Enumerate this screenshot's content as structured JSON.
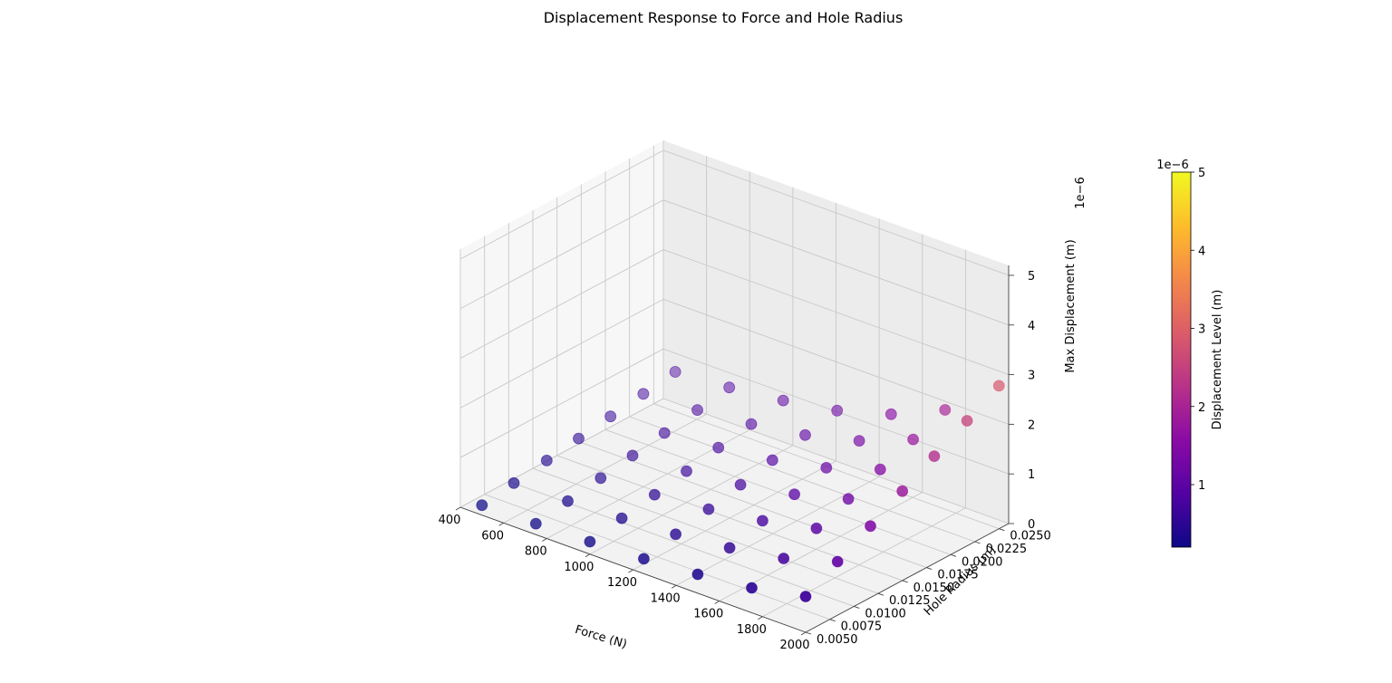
{
  "chart_data": {
    "type": "scatter",
    "projection": "3d",
    "title": "Displacement Response to Force and Hole Radius",
    "xlabel": "Force (N)",
    "ylabel": "Hole Radius (m)",
    "zlabel": "Max Displacement (m)",
    "z_offset_label": "1e−6",
    "xlim": [
      400,
      2000
    ],
    "ylim": [
      0.005,
      0.026
    ],
    "zlim": [
      0,
      5.2
    ],
    "x_ticks": [
      "400",
      "600",
      "800",
      "1000",
      "1200",
      "1400",
      "1600",
      "1800",
      "2000"
    ],
    "y_ticks": [
      "0.0050",
      "0.0075",
      "0.0100",
      "0.0125",
      "0.0150",
      "0.0175",
      "0.0200",
      "0.0225",
      "0.0250"
    ],
    "z_ticks": [
      "0",
      "1",
      "2",
      "3",
      "4",
      "5"
    ],
    "x": [
      500,
      750,
      1000,
      1250,
      1500,
      1750,
      2000
    ],
    "y": [
      0.005,
      0.0083,
      0.0117,
      0.015,
      0.0183,
      0.0217,
      0.025
    ],
    "z_units": "×1e-6 m",
    "z": [
      [
        0.2,
        0.22,
        0.25,
        0.3,
        0.38,
        0.5,
        0.72
      ],
      [
        0.3,
        0.33,
        0.38,
        0.45,
        0.57,
        0.75,
        1.08
      ],
      [
        0.4,
        0.44,
        0.5,
        0.6,
        0.76,
        1.0,
        1.44
      ],
      [
        0.5,
        0.55,
        0.63,
        0.75,
        0.95,
        1.25,
        1.8
      ],
      [
        0.6,
        0.66,
        0.76,
        0.9,
        1.14,
        1.5,
        2.16
      ],
      [
        0.7,
        0.77,
        0.88,
        1.05,
        1.33,
        1.75,
        2.52
      ],
      [
        0.8,
        0.88,
        1.01,
        1.2,
        1.52,
        2.0,
        2.88
      ]
    ],
    "color_scale": {
      "label": "Displacement Level (m)",
      "offset_label": "1e−6",
      "ticks": [
        "1",
        "2",
        "3",
        "4",
        "5"
      ],
      "range": [
        0.2,
        5.0
      ],
      "colormap": "plasma",
      "colors": [
        "#0d0887",
        "#5302a3",
        "#8b0aa5",
        "#b83289",
        "#db5c68",
        "#f48849",
        "#febd2a",
        "#f0f921"
      ]
    },
    "grid": true,
    "legend": "none"
  }
}
